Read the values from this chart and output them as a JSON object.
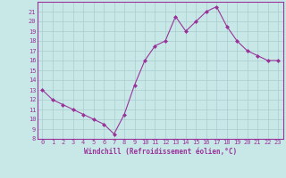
{
  "x": [
    0,
    1,
    2,
    3,
    4,
    5,
    6,
    7,
    8,
    9,
    10,
    11,
    12,
    13,
    14,
    15,
    16,
    17,
    18,
    19,
    20,
    21,
    22,
    23
  ],
  "y": [
    13,
    12,
    11.5,
    11,
    10.5,
    10,
    9.5,
    8.5,
    10.5,
    13.5,
    16,
    17.5,
    18,
    20.5,
    19,
    20,
    21,
    21.5,
    19.5,
    18,
    17,
    16.5,
    16,
    16
  ],
  "line_color": "#993399",
  "marker": "D",
  "marker_size": 2.0,
  "bg_color": "#c8e8e8",
  "grid_color": "#aacccc",
  "xlabel": "Windchill (Refroidissement éolien,°C)",
  "xlabel_color": "#993399",
  "tick_color": "#993399",
  "spine_color": "#993399",
  "ylim": [
    8,
    22
  ],
  "xlim": [
    -0.5,
    23.5
  ],
  "yticks": [
    8,
    9,
    10,
    11,
    12,
    13,
    14,
    15,
    16,
    17,
    18,
    19,
    20,
    21
  ],
  "xticks": [
    0,
    1,
    2,
    3,
    4,
    5,
    6,
    7,
    8,
    9,
    10,
    11,
    12,
    13,
    14,
    15,
    16,
    17,
    18,
    19,
    20,
    21,
    22,
    23
  ],
  "tick_fontsize": 5.0,
  "xlabel_fontsize": 5.5
}
